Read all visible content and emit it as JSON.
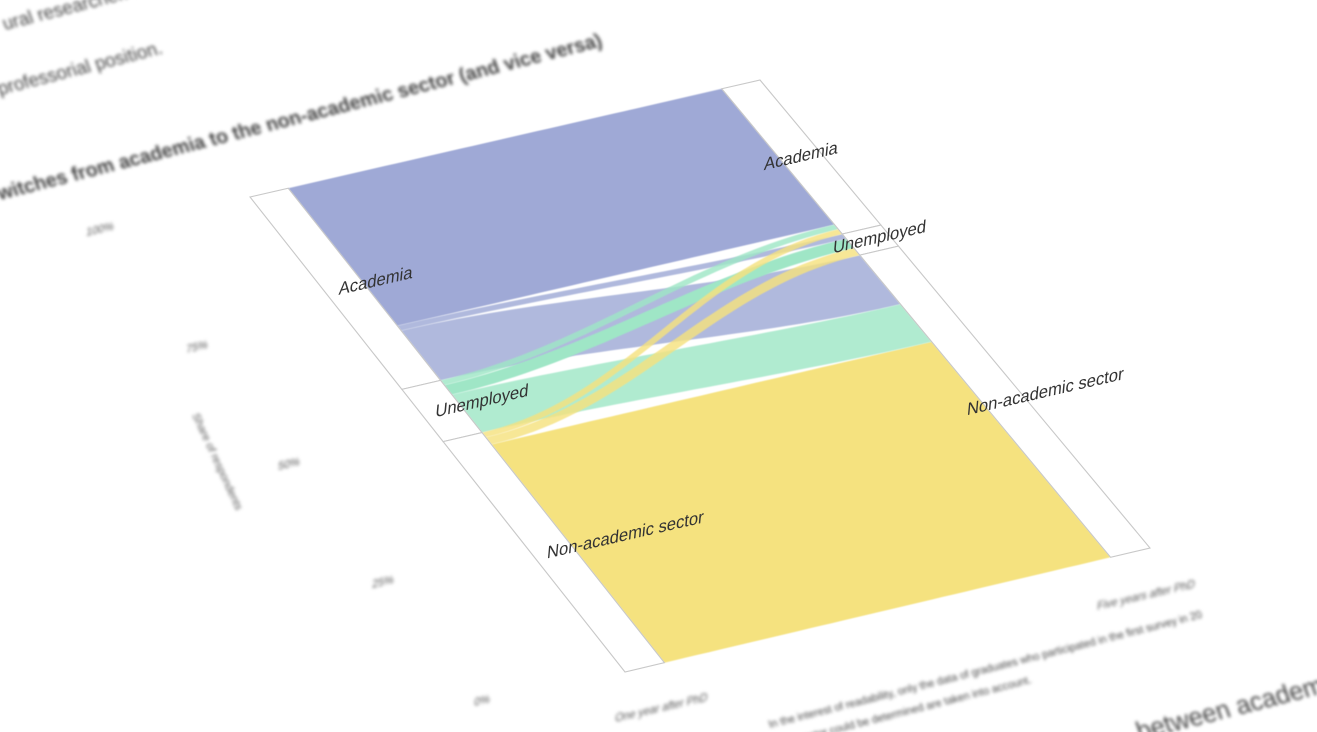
{
  "page": {
    "body_line_1": "ural researcher. In this",
    "body_line_2": "professorial position.",
    "figure_title": "witches from academia to the non-academic sector (and vice versa)",
    "footnote_line_1": "In the interest of readability, only the data of graduates who participated in the first survey in 20",
    "footnote_line_2": "sector could be determined are taken into account.",
    "next_heading": "between academi"
  },
  "chart_data": {
    "type": "sankey",
    "title": "witches from academia to the non-academic sector (and vice versa)",
    "ylabel": "Share of respondents",
    "y_ticks": [
      "0%",
      "25%",
      "50%",
      "75%",
      "100%"
    ],
    "x_labels": [
      "One year after PhD",
      "Five years after PhD"
    ],
    "colors": {
      "Academia": "#9fa9d6",
      "Unemployed": "#9fe6c6",
      "Non-academic sector": "#f5e27f"
    },
    "left_nodes": [
      {
        "name": "Academia",
        "share": 0.405
      },
      {
        "name": "Unemployed",
        "share": 0.11
      },
      {
        "name": "Non-academic sector",
        "share": 0.485
      }
    ],
    "right_nodes": [
      {
        "name": "Academia",
        "share": 0.31
      },
      {
        "name": "Unemployed",
        "share": 0.045
      },
      {
        "name": "Non-academic sector",
        "share": 0.645
      }
    ],
    "flows": [
      {
        "from": "Academia",
        "to": "Academia",
        "share": 0.29
      },
      {
        "from": "Academia",
        "to": "Unemployed",
        "share": 0.01
      },
      {
        "from": "Academia",
        "to": "Non-academic sector",
        "share": 0.105
      },
      {
        "from": "Unemployed",
        "to": "Academia",
        "share": 0.01
      },
      {
        "from": "Unemployed",
        "to": "Unemployed",
        "share": 0.02
      },
      {
        "from": "Unemployed",
        "to": "Non-academic sector",
        "share": 0.08
      },
      {
        "from": "Non-academic sector",
        "to": "Academia",
        "share": 0.01
      },
      {
        "from": "Non-academic sector",
        "to": "Unemployed",
        "share": 0.015
      },
      {
        "from": "Non-academic sector",
        "to": "Non-academic sector",
        "share": 0.46
      }
    ]
  }
}
